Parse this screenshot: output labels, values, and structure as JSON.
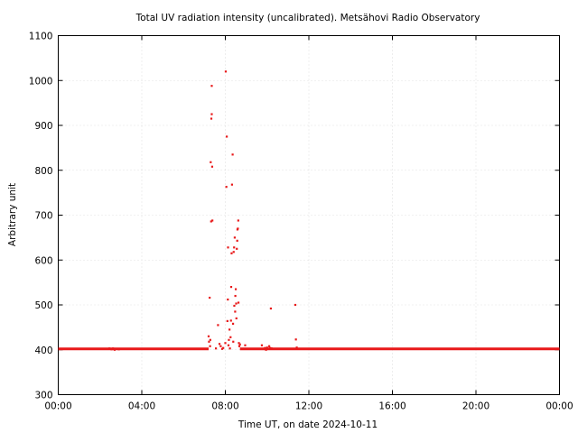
{
  "chart_data": {
    "type": "scatter",
    "title": "Total UV radiation intensity (uncalibrated). Metsähovi Radio Observatory",
    "xlabel": "Time UT, on date 2024-10-11",
    "ylabel": "Arbitrary unit",
    "xlim": [
      0,
      24
    ],
    "ylim": [
      300,
      1100
    ],
    "xticks": [
      {
        "value": 0,
        "label": "00:00"
      },
      {
        "value": 4,
        "label": "04:00"
      },
      {
        "value": 8,
        "label": "08:00"
      },
      {
        "value": 12,
        "label": "12:00"
      },
      {
        "value": 16,
        "label": "16:00"
      },
      {
        "value": 20,
        "label": "20:00"
      },
      {
        "value": 24,
        "label": "00:00"
      }
    ],
    "yticks": [
      {
        "value": 300,
        "label": "300"
      },
      {
        "value": 400,
        "label": "400"
      },
      {
        "value": 500,
        "label": "500"
      },
      {
        "value": 600,
        "label": "600"
      },
      {
        "value": 700,
        "label": "700"
      },
      {
        "value": 800,
        "label": "800"
      },
      {
        "value": 900,
        "label": "900"
      },
      {
        "value": 1000,
        "label": "1000"
      },
      {
        "value": 1100,
        "label": "1100"
      }
    ],
    "grid": true,
    "color": "#e8191a",
    "baseline": {
      "value": 402,
      "segments": [
        [
          0,
          7.2
        ],
        [
          8.7,
          24
        ]
      ]
    },
    "points": [
      [
        2.45,
        403
      ],
      [
        2.55,
        401
      ],
      [
        2.62,
        403
      ],
      [
        2.7,
        400
      ],
      [
        2.8,
        402
      ],
      [
        2.9,
        401
      ],
      [
        7.2,
        430
      ],
      [
        7.22,
        418
      ],
      [
        7.25,
        516
      ],
      [
        7.27,
        408
      ],
      [
        7.28,
        422
      ],
      [
        7.3,
        818
      ],
      [
        7.32,
        686
      ],
      [
        7.33,
        915
      ],
      [
        7.35,
        925
      ],
      [
        7.35,
        988
      ],
      [
        7.37,
        808
      ],
      [
        7.38,
        688
      ],
      [
        7.55,
        403
      ],
      [
        7.65,
        455
      ],
      [
        7.72,
        413
      ],
      [
        7.78,
        408
      ],
      [
        7.85,
        402
      ],
      [
        7.9,
        404
      ],
      [
        8.0,
        415
      ],
      [
        8.02,
        1020
      ],
      [
        8.05,
        763
      ],
      [
        8.07,
        875
      ],
      [
        8.1,
        464
      ],
      [
        8.12,
        512
      ],
      [
        8.13,
        628
      ],
      [
        8.15,
        410
      ],
      [
        8.17,
        422
      ],
      [
        8.2,
        445
      ],
      [
        8.22,
        403
      ],
      [
        8.25,
        428
      ],
      [
        8.27,
        465
      ],
      [
        8.28,
        540
      ],
      [
        8.3,
        615
      ],
      [
        8.32,
        768
      ],
      [
        8.35,
        835
      ],
      [
        8.37,
        458
      ],
      [
        8.38,
        418
      ],
      [
        8.4,
        618
      ],
      [
        8.42,
        628
      ],
      [
        8.43,
        498
      ],
      [
        8.45,
        650
      ],
      [
        8.47,
        485
      ],
      [
        8.48,
        520
      ],
      [
        8.5,
        535
      ],
      [
        8.52,
        503
      ],
      [
        8.53,
        470
      ],
      [
        8.55,
        625
      ],
      [
        8.57,
        643
      ],
      [
        8.58,
        668
      ],
      [
        8.6,
        670
      ],
      [
        8.62,
        688
      ],
      [
        8.63,
        505
      ],
      [
        8.65,
        415
      ],
      [
        8.67,
        408
      ],
      [
        8.7,
        412
      ],
      [
        8.95,
        410
      ],
      [
        9.75,
        410
      ],
      [
        9.85,
        402
      ],
      [
        9.9,
        404
      ],
      [
        9.95,
        400
      ],
      [
        10.0,
        405
      ],
      [
        10.05,
        402
      ],
      [
        10.1,
        408
      ],
      [
        10.15,
        404
      ],
      [
        10.18,
        492
      ],
      [
        10.22,
        403
      ],
      [
        11.35,
        500
      ],
      [
        11.38,
        423
      ],
      [
        11.42,
        405
      ]
    ]
  }
}
